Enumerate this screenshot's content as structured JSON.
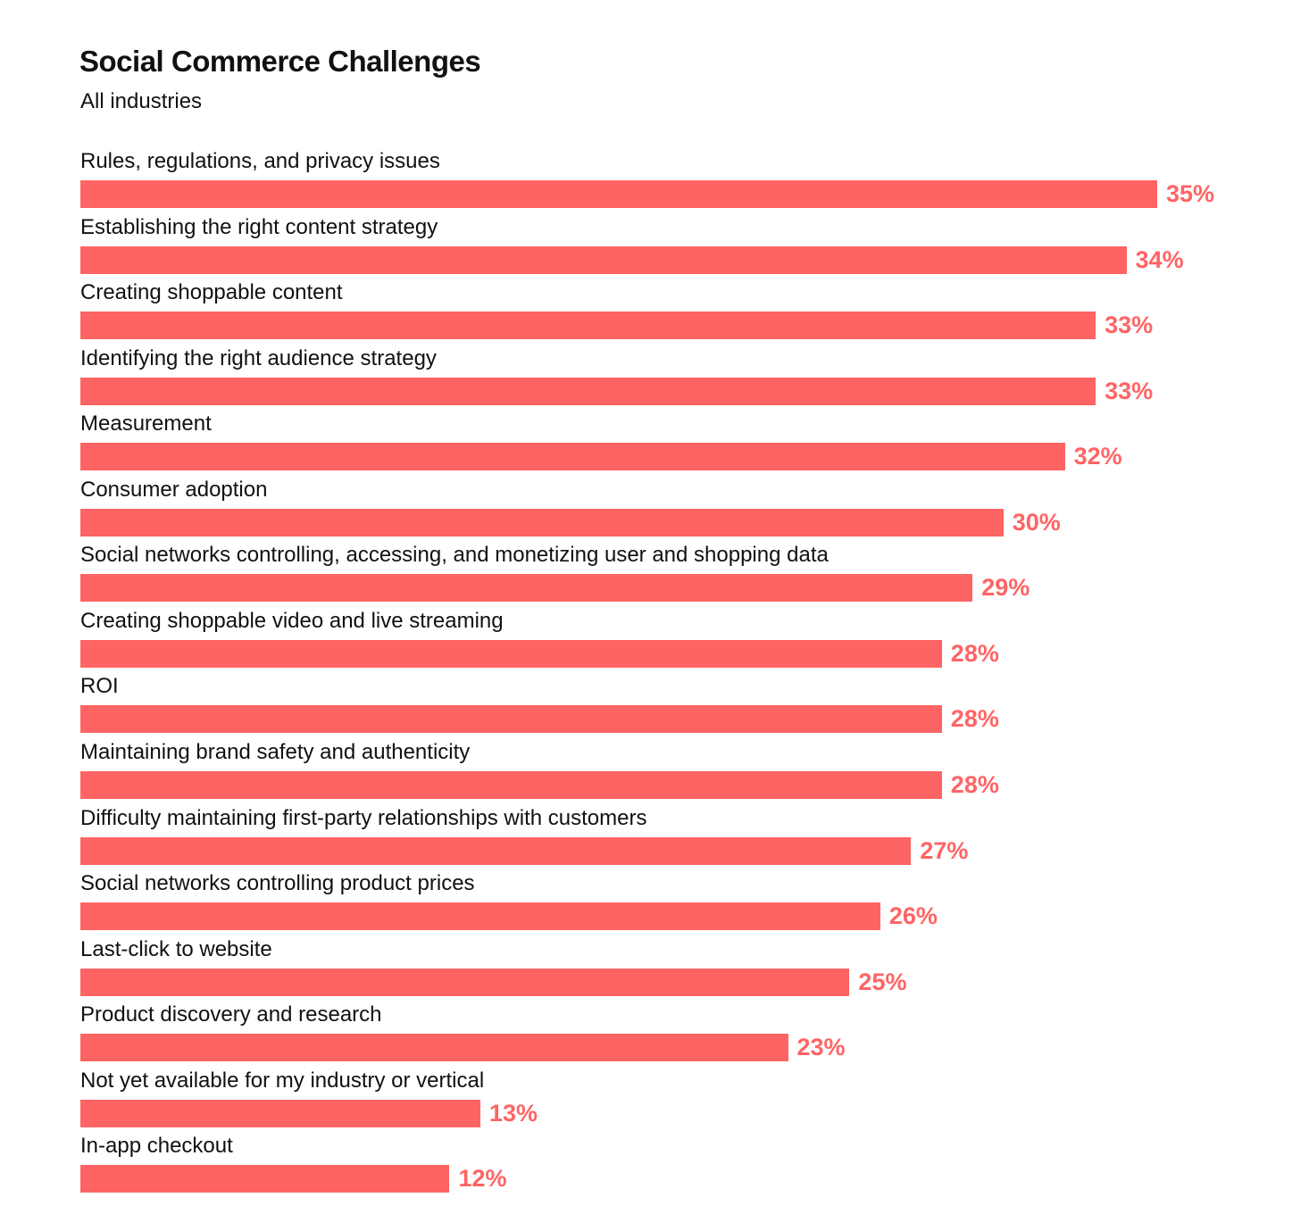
{
  "chart_data": {
    "type": "bar",
    "orientation": "horizontal",
    "title": "Social Commerce Challenges",
    "subtitle": "All industries",
    "xlabel": "",
    "ylabel": "",
    "unit": "%",
    "xlim": [
      0,
      35
    ],
    "grid": false,
    "color": "#ff6464",
    "categories": [
      "Rules, regulations, and privacy issues",
      "Establishing the right content strategy",
      "Creating shoppable content",
      "Identifying the right audience strategy",
      "Measurement",
      "Consumer adoption",
      "Social networks controlling, accessing, and monetizing user and shopping data",
      "Creating shoppable video and live streaming",
      "ROI",
      "Maintaining brand safety and authenticity",
      "Difficulty maintaining first-party relationships with customers",
      "Social networks controlling product prices",
      "Last-click to website",
      "Product discovery and research",
      "Not yet available for my industry or vertical",
      "In-app checkout"
    ],
    "values": [
      35,
      34,
      33,
      33,
      32,
      30,
      29,
      28,
      28,
      28,
      27,
      26,
      25,
      23,
      13,
      12
    ],
    "value_labels": [
      "35%",
      "34%",
      "33%",
      "33%",
      "32%",
      "30%",
      "29%",
      "28%",
      "28%",
      "28%",
      "27%",
      "26%",
      "25%",
      "23%",
      "13%",
      "12%"
    ]
  }
}
